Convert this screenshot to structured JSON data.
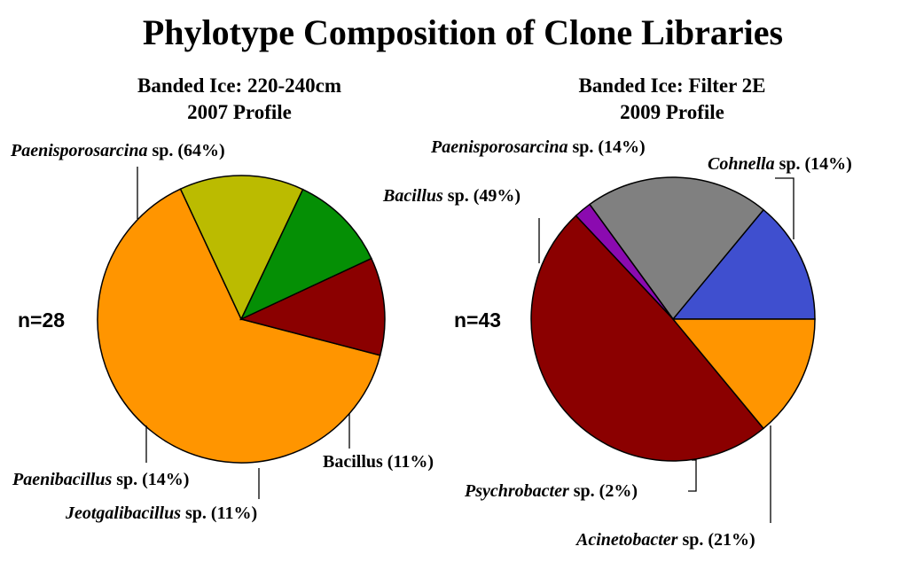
{
  "title": "Phylotype Composition of Clone Libraries",
  "colors": {
    "orange": "#ff9500",
    "olive": "#bbbb00",
    "green": "#058f05",
    "darkred": "#8b0000",
    "blue": "#3f4fcf",
    "gray": "#808080",
    "purple": "#8b0ab0"
  },
  "chart_data": [
    {
      "type": "pie",
      "title_line1": "Banded Ice: 220-240cm",
      "title_line2": "2007 Profile",
      "n_label": "n=28",
      "slices": [
        {
          "genus": "Paenisporosarcina",
          "suffix": " sp. (64%)",
          "italic": true,
          "value": 64,
          "color": "#ff9500"
        },
        {
          "genus": "Bacillus",
          "suffix": " (11%)",
          "italic": false,
          "value": 11,
          "color": "#8b0000"
        },
        {
          "genus": "Jeotgalibacillus",
          "suffix": " sp. (11%)",
          "italic": true,
          "value": 11,
          "color": "#058f05"
        },
        {
          "genus": "Paenibacillus",
          "suffix": " sp. (14%)",
          "italic": true,
          "value": 14,
          "color": "#bbbb00"
        }
      ]
    },
    {
      "type": "pie",
      "title_line1": "Banded Ice: Filter 2E",
      "title_line2": "2009 Profile",
      "n_label": "n=43",
      "slices": [
        {
          "genus": "Cohnella",
          "suffix": " sp. (14%)",
          "italic": true,
          "value": 14,
          "color": "#3f4fcf"
        },
        {
          "genus": "Acinetobacter",
          "suffix": " sp. (21%)",
          "italic": true,
          "value": 21,
          "color": "#808080"
        },
        {
          "genus": "Psychrobacter",
          "suffix": " sp. (2%)",
          "italic": true,
          "value": 2,
          "color": "#8b0ab0"
        },
        {
          "genus": "Bacillus",
          "suffix": " sp. (49%)",
          "italic": true,
          "value": 49,
          "color": "#8b0000"
        },
        {
          "genus": "Paenisporosarcina",
          "suffix": " sp. (14%)",
          "italic": true,
          "value": 14,
          "color": "#ff9500"
        }
      ]
    }
  ]
}
